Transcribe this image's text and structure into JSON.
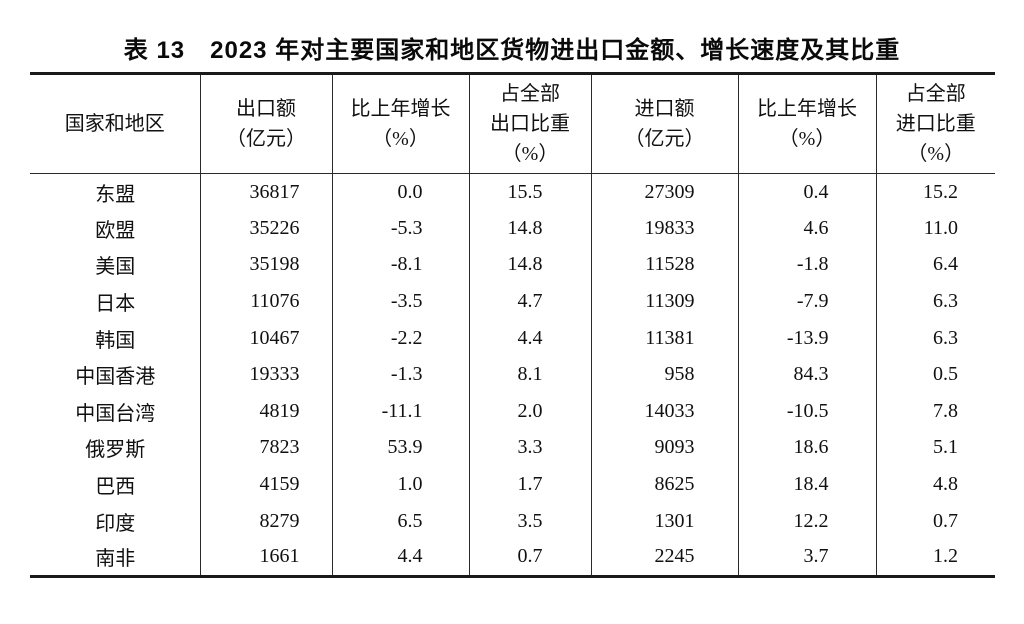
{
  "title": "表 13　2023 年对主要国家和地区货物进出口金额、增长速度及其比重",
  "colors": {
    "background": "#ffffff",
    "text": "#111111",
    "border": "#1a1a1a"
  },
  "table": {
    "columns": [
      {
        "id": "country",
        "label": "国家和地区"
      },
      {
        "id": "export",
        "label": "出口额\n（亿元）"
      },
      {
        "id": "export-growth",
        "label": "比上年增长\n（%）"
      },
      {
        "id": "export-share",
        "label": "占全部\n出口比重\n（%）"
      },
      {
        "id": "import",
        "label": "进口额\n（亿元）"
      },
      {
        "id": "import-growth",
        "label": "比上年增长\n（%）"
      },
      {
        "id": "import-share",
        "label": "占全部\n进口比重\n（%）"
      }
    ],
    "rows": [
      [
        "东盟",
        "36817",
        "0.0",
        "15.5",
        "27309",
        "0.4",
        "15.2"
      ],
      [
        "欧盟",
        "35226",
        "-5.3",
        "14.8",
        "19833",
        "4.6",
        "11.0"
      ],
      [
        "美国",
        "35198",
        "-8.1",
        "14.8",
        "11528",
        "-1.8",
        "6.4"
      ],
      [
        "日本",
        "11076",
        "-3.5",
        "4.7",
        "11309",
        "-7.9",
        "6.3"
      ],
      [
        "韩国",
        "10467",
        "-2.2",
        "4.4",
        "11381",
        "-13.9",
        "6.3"
      ],
      [
        "中国香港",
        "19333",
        "-1.3",
        "8.1",
        "958",
        "84.3",
        "0.5"
      ],
      [
        "中国台湾",
        "4819",
        "-11.1",
        "2.0",
        "14033",
        "-10.5",
        "7.8"
      ],
      [
        "俄罗斯",
        "7823",
        "53.9",
        "3.3",
        "9093",
        "18.6",
        "5.1"
      ],
      [
        "巴西",
        "4159",
        "1.0",
        "1.7",
        "8625",
        "18.4",
        "4.8"
      ],
      [
        "印度",
        "8279",
        "6.5",
        "3.5",
        "1301",
        "12.2",
        "0.7"
      ],
      [
        "南非",
        "1661",
        "4.4",
        "0.7",
        "2245",
        "3.7",
        "1.2"
      ]
    ]
  }
}
